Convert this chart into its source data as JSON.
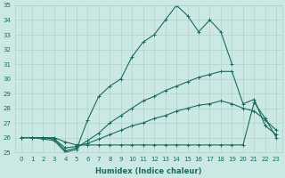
{
  "title": "",
  "xlabel": "Humidex (Indice chaleur)",
  "ylabel": "",
  "xlim": [
    -0.5,
    23.5
  ],
  "ylim": [
    25,
    35
  ],
  "xticks": [
    0,
    1,
    2,
    3,
    4,
    5,
    6,
    7,
    8,
    9,
    10,
    11,
    12,
    13,
    14,
    15,
    16,
    17,
    18,
    19,
    20,
    21,
    22,
    23
  ],
  "yticks": [
    25,
    26,
    27,
    28,
    29,
    30,
    31,
    32,
    33,
    34,
    35
  ],
  "bg_color": "#cce8e4",
  "grid_color": "#aad4cc",
  "line_color": "#1a6b5a",
  "lines": [
    {
      "x": [
        0,
        1,
        2,
        3,
        4,
        5,
        6,
        7,
        8,
        9,
        10,
        11,
        12,
        13,
        14,
        15,
        16,
        17,
        18,
        19,
        20,
        21,
        22,
        23
      ],
      "y": [
        26.0,
        26.0,
        25.9,
        25.8,
        25.0,
        25.2,
        27.2,
        28.8,
        29.5,
        30.0,
        31.5,
        32.5,
        33.0,
        34.0,
        35.0,
        34.3,
        33.2,
        34.0,
        33.2,
        31.0,
        null,
        null,
        null,
        null
      ]
    },
    {
      "x": [
        0,
        1,
        2,
        3,
        4,
        5,
        6,
        7,
        8,
        9,
        10,
        11,
        12,
        13,
        14,
        15,
        16,
        17,
        18,
        19,
        20,
        21,
        22,
        23
      ],
      "y": [
        26.0,
        26.0,
        26.0,
        25.9,
        25.1,
        25.3,
        25.8,
        26.3,
        27.0,
        27.5,
        28.0,
        28.5,
        28.8,
        29.2,
        29.5,
        29.8,
        30.1,
        30.3,
        30.5,
        30.5,
        28.3,
        28.6,
        26.8,
        26.2
      ]
    },
    {
      "x": [
        0,
        1,
        2,
        3,
        4,
        5,
        6,
        7,
        8,
        9,
        10,
        11,
        12,
        13,
        14,
        15,
        16,
        17,
        18,
        19,
        20,
        21,
        22,
        23
      ],
      "y": [
        26.0,
        26.0,
        26.0,
        25.9,
        25.3,
        25.4,
        25.6,
        25.9,
        26.2,
        26.5,
        26.8,
        27.0,
        27.3,
        27.5,
        27.8,
        28.0,
        28.2,
        28.3,
        28.5,
        28.3,
        28.0,
        27.8,
        27.2,
        26.5
      ]
    },
    {
      "x": [
        0,
        1,
        2,
        3,
        4,
        5,
        6,
        7,
        8,
        9,
        10,
        11,
        12,
        13,
        14,
        15,
        16,
        17,
        18,
        19,
        20,
        21,
        22,
        23
      ],
      "y": [
        26.0,
        26.0,
        26.0,
        26.0,
        25.7,
        25.5,
        25.5,
        25.5,
        25.5,
        25.5,
        25.5,
        25.5,
        25.5,
        25.5,
        25.5,
        25.5,
        25.5,
        25.5,
        25.5,
        25.5,
        25.5,
        28.4,
        27.3,
        26.0
      ]
    }
  ],
  "marker": "+",
  "markersize": 3,
  "linewidth": 0.8,
  "tick_fontsize": 5.0,
  "xlabel_fontsize": 6.0
}
